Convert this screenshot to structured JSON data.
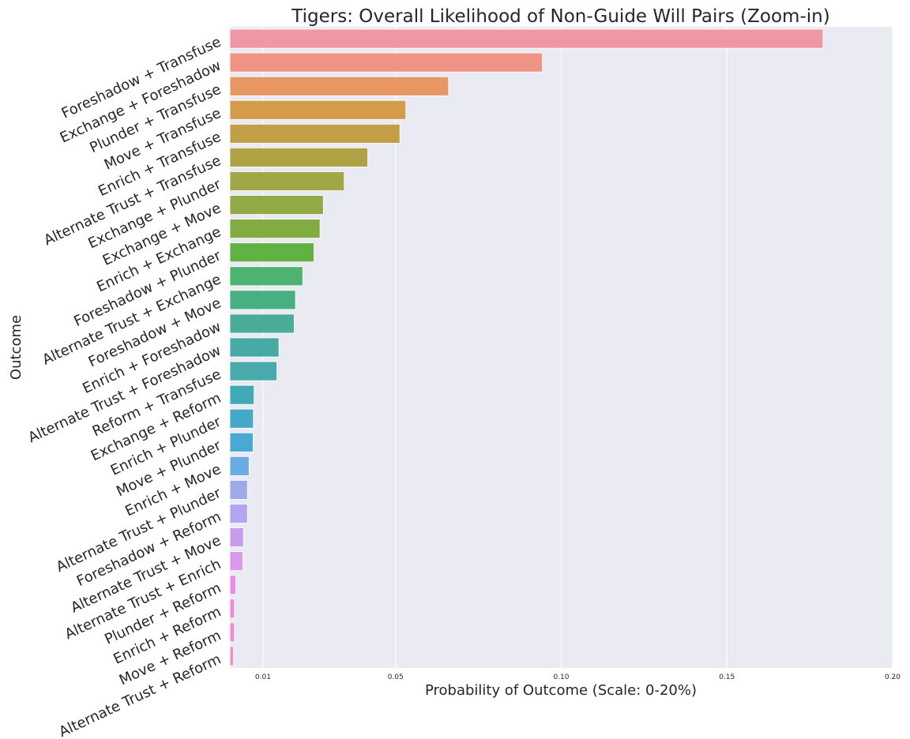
{
  "chart_data": {
    "type": "bar",
    "orientation": "horizontal",
    "title": "Tigers: Overall Likelihood of Non-Guide Will Pairs (Zoom-in)",
    "xlabel": "Probability of Outcome (Scale: 0-20%)",
    "ylabel": "Outcome",
    "xlim": [
      0,
      0.2
    ],
    "xticks": [
      {
        "value": 0.01,
        "label": "0.01"
      },
      {
        "value": 0.05,
        "label": "0.05"
      },
      {
        "value": 0.1,
        "label": "0.10"
      },
      {
        "value": 0.15,
        "label": "0.15"
      },
      {
        "value": 0.2,
        "label": "0.20"
      }
    ],
    "grid": true,
    "categories": [
      "Foreshadow + Transfuse",
      "Exchange + Foreshadow",
      "Plunder + Transfuse",
      "Move + Transfuse",
      "Enrich + Transfuse",
      "Alternate Trust + Transfuse",
      "Exchange + Plunder",
      "Exchange + Move",
      "Enrich + Exchange",
      "Foreshadow + Plunder",
      "Alternate Trust + Exchange",
      "Foreshadow + Move",
      "Enrich + Foreshadow",
      "Alternate Trust + Foreshadow",
      "Reform + Transfuse",
      "Exchange + Reform",
      "Enrich + Plunder",
      "Move + Plunder",
      "Enrich + Move",
      "Alternate Trust + Plunder",
      "Foreshadow + Reform",
      "Alternate Trust + Move",
      "Alternate Trust + Enrich",
      "Plunder + Reform",
      "Enrich + Reform",
      "Move + Reform",
      "Alternate Trust + Reform"
    ],
    "values": [
      0.179,
      0.0943,
      0.066,
      0.0531,
      0.0513,
      0.0416,
      0.0345,
      0.0282,
      0.0272,
      0.0254,
      0.022,
      0.0198,
      0.0194,
      0.0148,
      0.0142,
      0.0073,
      0.0071,
      0.007,
      0.0058,
      0.0053,
      0.0053,
      0.0041,
      0.0039,
      0.0018,
      0.0014,
      0.0014,
      0.0011
    ],
    "colors": [
      "#ee98a3",
      "#ef9384",
      "#e79664",
      "#d49b48",
      "#c29f47",
      "#aea245",
      "#a2a647",
      "#92a947",
      "#82ab42",
      "#60b242",
      "#4db46f",
      "#47af82",
      "#48ac98",
      "#47aaa4",
      "#49aaac",
      "#41aab8",
      "#44a9c6",
      "#4aa9d4",
      "#6aade5",
      "#9ea9ec",
      "#b1a6ef",
      "#c79deb",
      "#d89ae9",
      "#e890e5",
      "#ee8cd9",
      "#ef8ed0",
      "#ef8fc6"
    ],
    "style": {
      "background": "#eaeaf2",
      "grid_color": "#ffffff",
      "text_color": "#262626"
    }
  }
}
